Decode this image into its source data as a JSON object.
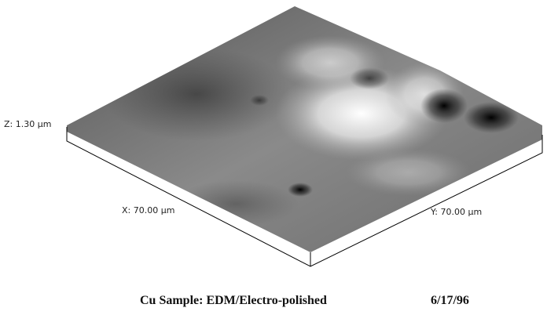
{
  "axes": {
    "z": "Z: 1.30 µm",
    "x": "X: 70.00 µm",
    "y": "Y: 70.00 µm"
  },
  "caption": {
    "title": "Cu Sample: EDM/Electro-polished",
    "date": "6/17/96"
  }
}
